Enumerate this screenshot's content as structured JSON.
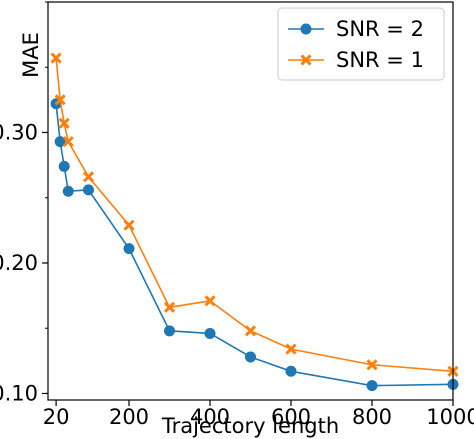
{
  "chart_data": {
    "type": "line",
    "title": "",
    "xlabel": "Trajectory length",
    "ylabel": "MAE",
    "xlim": [
      0,
      1000
    ],
    "ylim": [
      0.095,
      0.4
    ],
    "x_ticks": [
      20,
      200,
      400,
      600,
      800,
      1000
    ],
    "x_tick_labels": [
      "20",
      "200",
      "400",
      "600",
      "800",
      "1000"
    ],
    "y_ticks": [
      0.1,
      0.2,
      0.3
    ],
    "y_tick_labels": [
      "0.10",
      "0.20",
      "0.30"
    ],
    "grid": false,
    "legend_position": "top-right",
    "x": [
      20,
      30,
      40,
      50,
      100,
      200,
      300,
      400,
      500,
      600,
      800,
      1000
    ],
    "series": [
      {
        "name": "SNR = 2",
        "color": "#1f77b4",
        "marker": "circle",
        "values": [
          0.322,
          0.293,
          0.274,
          0.255,
          0.256,
          0.211,
          0.148,
          0.146,
          0.128,
          0.117,
          0.106,
          0.107
        ]
      },
      {
        "name": "SNR = 1",
        "color": "#ff7f0e",
        "marker": "x",
        "values": [
          0.357,
          0.325,
          0.307,
          0.293,
          0.266,
          0.229,
          0.166,
          0.171,
          0.148,
          0.134,
          0.122,
          0.117
        ]
      }
    ]
  }
}
